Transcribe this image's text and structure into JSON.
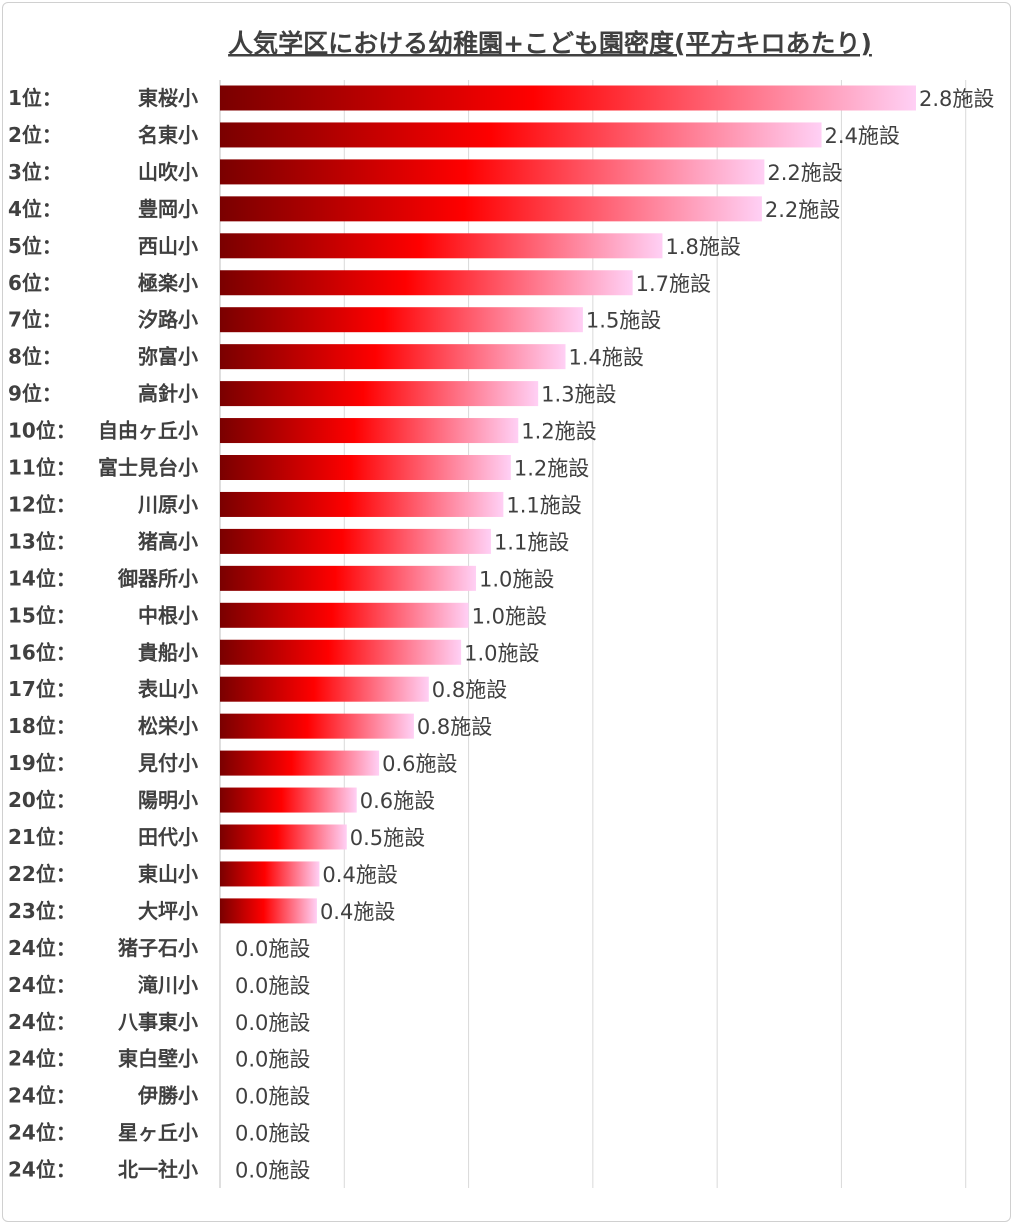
{
  "chart_data": {
    "type": "bar",
    "orientation": "horizontal",
    "title": "人気学区における幼稚園+こども園密度(平方キロあたり)",
    "value_suffix": "施設",
    "xlim": [
      0,
      2.8
    ],
    "grid": true,
    "legend": "none",
    "bar_gradient": [
      "#7a0000",
      "#ff0000",
      "#ffd0f5"
    ],
    "ranks": [
      "1位：",
      "2位：",
      "3位：",
      "4位：",
      "5位：",
      "6位：",
      "7位：",
      "8位：",
      "9位：",
      "10位：",
      "11位：",
      "12位：",
      "13位：",
      "14位：",
      "15位：",
      "16位：",
      "17位：",
      "18位：",
      "19位：",
      "20位：",
      "21位：",
      "22位：",
      "23位：",
      "24位：",
      "24位：",
      "24位：",
      "24位：",
      "24位：",
      "24位：",
      "24位："
    ],
    "categories": [
      "東桜小",
      "名東小",
      "山吹小",
      "豊岡小",
      "西山小",
      "極楽小",
      "汐路小",
      "弥富小",
      "高針小",
      "自由ヶ丘小",
      "富士見台小",
      "川原小",
      "猪高小",
      "御器所小",
      "中根小",
      "貴船小",
      "表山小",
      "松栄小",
      "見付小",
      "陽明小",
      "田代小",
      "東山小",
      "大坪小",
      "猪子石小",
      "滝川小",
      "八事東小",
      "東白壁小",
      "伊勝小",
      "星ヶ丘小",
      "北一社小"
    ],
    "values": [
      2.8,
      2.42,
      2.19,
      2.18,
      1.78,
      1.66,
      1.46,
      1.39,
      1.28,
      1.2,
      1.17,
      1.14,
      1.09,
      1.03,
      1.0,
      0.97,
      0.84,
      0.78,
      0.64,
      0.55,
      0.51,
      0.4,
      0.39,
      0.0,
      0.0,
      0.0,
      0.0,
      0.0,
      0.0,
      0.0
    ],
    "value_labels": [
      "2.8",
      "2.4",
      "2.2",
      "2.2",
      "1.8",
      "1.7",
      "1.5",
      "1.4",
      "1.3",
      "1.2",
      "1.2",
      "1.1",
      "1.1",
      "1.0",
      "1.0",
      "1.0",
      "0.8",
      "0.8",
      "0.6",
      "0.6",
      "0.5",
      "0.4",
      "0.4",
      "0.0",
      "0.0",
      "0.0",
      "0.0",
      "0.0",
      "0.0",
      "0.0"
    ]
  }
}
